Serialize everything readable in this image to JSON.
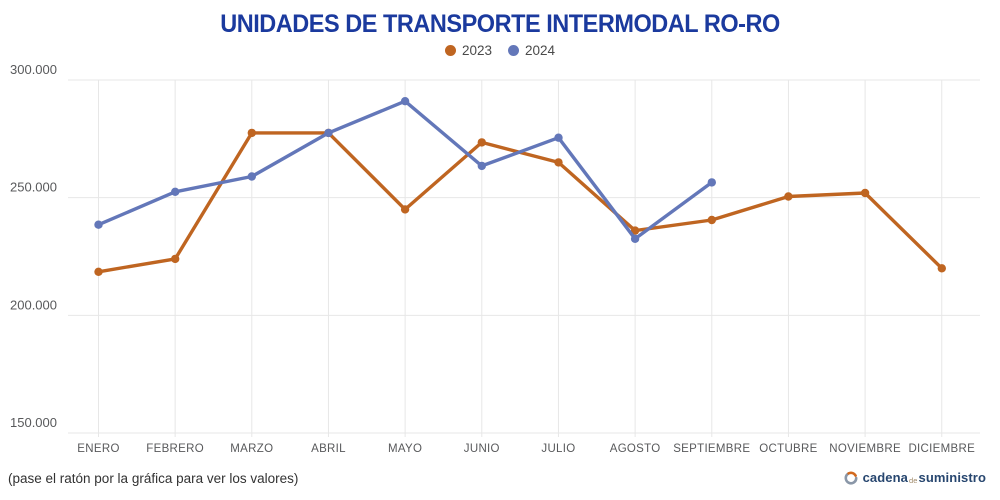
{
  "header": {
    "title": "UNIDADES DE TRANSPORTE INTERMODAL RO-RO"
  },
  "legend": {
    "items": [
      {
        "label": "2023",
        "color": "#bf6521"
      },
      {
        "label": "2024",
        "color": "#6377b9"
      }
    ]
  },
  "chart_data": {
    "type": "line",
    "title": "UNIDADES DE TRANSPORTE INTERMODAL RO-RO",
    "categories": [
      "ENERO",
      "FEBRERO",
      "MARZO",
      "ABRIL",
      "MAYO",
      "JUNIO",
      "JULIO",
      "AGOSTO",
      "SEPTIEMBRE",
      "OCTUBRE",
      "NOVIEMBRE",
      "DICIEMBRE"
    ],
    "series": [
      {
        "name": "2023",
        "color": "#bf6521",
        "values": [
          218500,
          224000,
          277500,
          277500,
          245000,
          273500,
          265000,
          236000,
          240500,
          250500,
          252000,
          220000
        ]
      },
      {
        "name": "2024",
        "color": "#6377b9",
        "values": [
          238500,
          252500,
          259000,
          277500,
          291000,
          263500,
          275500,
          232500,
          256500
        ]
      }
    ],
    "ylim": [
      150000,
      300000
    ],
    "yticks": [
      {
        "value": 300000,
        "label": "300.000"
      },
      {
        "value": 250000,
        "label": "250.000"
      },
      {
        "value": 200000,
        "label": "200.000"
      },
      {
        "value": 150000,
        "label": "150.000"
      }
    ],
    "grid": "on",
    "legend_position": "top",
    "xlabel": "",
    "ylabel": ""
  },
  "footer": {
    "hint": "(pase el ratón por la gráfica para ver los valores)"
  },
  "logo": {
    "part1": "cadena",
    "part2": "de",
    "part3": "suministro",
    "navy": "#27466f",
    "orange": "#d2691e",
    "gray": "#8a97a8"
  },
  "colors": {
    "title": "#1b3a9e",
    "grid": "#e7e7e7",
    "axis_text": "#58595b",
    "legend_text": "#4a4a4a"
  }
}
